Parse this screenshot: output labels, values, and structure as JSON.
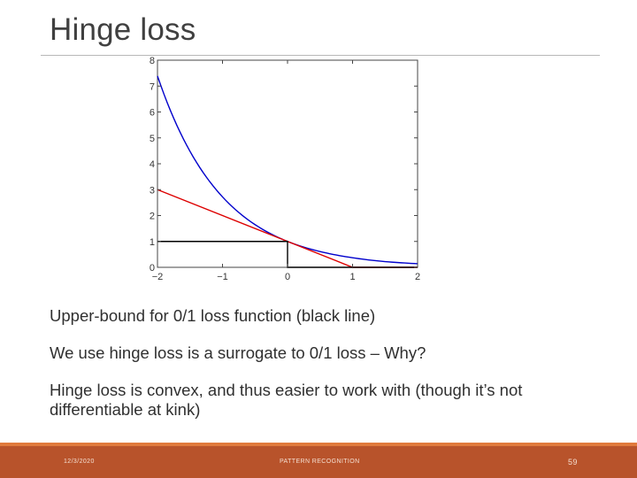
{
  "slide": {
    "title": "Hinge loss",
    "bullets": [
      "Upper-bound for 0/1 loss function (black line)",
      "We use hinge loss is a surrogate to 0/1 loss – Why?",
      "Hinge loss is convex, and thus easier to work with (though it’s not differentiable at kink)"
    ],
    "footer": {
      "date": "12/3/2020",
      "center": "PATTERN RECOGNITION",
      "page": "59"
    }
  },
  "chart_data": {
    "type": "line",
    "title": "",
    "xlabel": "",
    "ylabel": "",
    "xlim": [
      -2,
      2
    ],
    "ylim": [
      0,
      8
    ],
    "xticks": [
      "−2",
      "−1",
      "0",
      "1",
      "2"
    ],
    "yticks": [
      "0",
      "1",
      "2",
      "3",
      "4",
      "5",
      "6",
      "7",
      "8"
    ],
    "grid": false,
    "series": [
      {
        "color": "#0000cc",
        "x": [
          -2.0,
          -1.5,
          -1.0,
          -0.5,
          0.0,
          0.5,
          1.0,
          1.5,
          2.0
        ],
        "y": [
          7.39,
          4.48,
          2.72,
          1.65,
          1.0,
          0.61,
          0.37,
          0.22,
          0.14
        ]
      },
      {
        "color": "#dd0000",
        "x": [
          -2.0,
          1.0,
          2.0
        ],
        "y": [
          3.0,
          0.0,
          0.0
        ]
      },
      {
        "color": "#000000",
        "x": [
          -2.0,
          0.0,
          0.0,
          2.0
        ],
        "y": [
          1.0,
          1.0,
          0.0,
          0.0
        ]
      }
    ]
  }
}
